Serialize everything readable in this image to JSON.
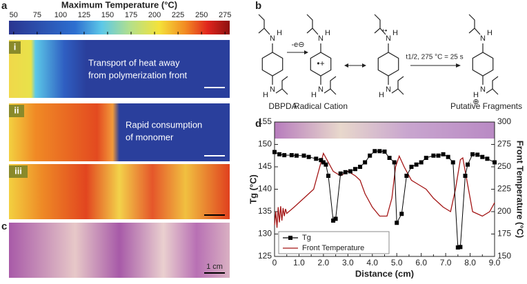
{
  "panel_labels": [
    "a",
    "b",
    "c",
    "d"
  ],
  "panel_a": {
    "colorbar": {
      "title": "Maximum Temperature (°C)",
      "lim": [
        45,
        280
      ],
      "ticks": [
        50,
        75,
        100,
        125,
        150,
        175,
        200,
        225,
        250,
        275
      ]
    },
    "images": [
      {
        "label": "i",
        "annotation": [
          "Transport of heat away",
          "from polymerization front"
        ]
      },
      {
        "label": "ii",
        "annotation": [
          "Rapid consumption",
          "of monomer"
        ]
      },
      {
        "label": "iii"
      }
    ]
  },
  "panel_b": {
    "atoms": [
      "N",
      "H"
    ],
    "charges": [
      "•+",
      "+•",
      "⊕"
    ],
    "labels": [
      "DBPDA",
      "Radical Cation",
      "Putative Fragments"
    ],
    "step": "-e⊖",
    "rate": "t1/2, 275 °C = 25 s"
  },
  "panel_c": {
    "scale": "1 cm"
  },
  "chart_data": {
    "type": "line",
    "xlabel": "Distance (cm)",
    "ylabel": "Tg (°C)",
    "y2label": "Front Temperature (°C)",
    "xlim": [
      0,
      9
    ],
    "xticks": [
      0,
      {
        "value": 0.5,
        "label": "0.5"
      },
      {
        "value": 1,
        "label": "1.0"
      },
      {
        "value": 1.5,
        "label": "1.5"
      },
      {
        "value": 2,
        "label": "2.0"
      },
      {
        "value": 2.5,
        "label": "2.5"
      },
      {
        "value": 3,
        "label": "3.0"
      },
      {
        "value": 3.5,
        "label": "3.5"
      },
      {
        "value": 4,
        "label": "4.0"
      },
      {
        "value": 4.5,
        "label": "4.5"
      },
      {
        "value": 5,
        "label": "5.0"
      },
      {
        "value": 5.5,
        "label": "5.5"
      },
      {
        "value": 6,
        "label": "6.0"
      },
      {
        "value": 6.5,
        "label": "6.5"
      },
      {
        "value": 7,
        "label": "7.0"
      },
      {
        "value": 7.5,
        "label": "7.5"
      },
      {
        "value": 8,
        "label": "8.0"
      },
      {
        "value": 8.5,
        "label": "8.5"
      },
      {
        "value": 9,
        "label": "9.0"
      }
    ],
    "ylim": [
      125,
      155
    ],
    "yticks": [
      125,
      130,
      135,
      140,
      145,
      150,
      155
    ],
    "y2lim": [
      150,
      300
    ],
    "y2ticks": [
      150,
      175,
      200,
      225,
      250,
      275,
      300
    ],
    "series": [
      {
        "name": "Tg",
        "color": "#000000",
        "marker": "square",
        "x": [
          0,
          0.2,
          0.4,
          0.7,
          0.9,
          1.2,
          1.4,
          1.7,
          1.9,
          2.0,
          2.1,
          2.2,
          2.4,
          2.5,
          2.7,
          2.9,
          3.1,
          3.3,
          3.5,
          3.7,
          3.9,
          4.1,
          4.3,
          4.5,
          4.7,
          4.9,
          5.0,
          5.2,
          5.4,
          5.6,
          5.8,
          6.0,
          6.2,
          6.5,
          6.7,
          6.9,
          7.1,
          7.3,
          7.5,
          7.6,
          7.8,
          7.9,
          8.1,
          8.3,
          8.5,
          8.7,
          9.0
        ],
        "values": [
          148.3,
          147.8,
          147.6,
          147.6,
          147.5,
          147.5,
          147.2,
          146.8,
          146.5,
          146,
          145.5,
          143,
          133,
          133.4,
          143.5,
          143.8,
          144,
          144.5,
          145,
          146,
          147.5,
          148.5,
          148.5,
          148.4,
          147,
          146,
          132.5,
          134.5,
          143,
          145,
          145.5,
          146,
          147,
          147.5,
          147.5,
          147.8,
          147.2,
          146,
          127,
          127.1,
          143,
          145.5,
          147.8,
          147.7,
          147.2,
          146.8,
          146
        ]
      },
      {
        "name": "Front Temperature",
        "color": "#a31515",
        "axis": "y2",
        "x": [
          0,
          0.05,
          0.1,
          0.15,
          0.2,
          0.25,
          0.3,
          0.35,
          0.4,
          0.45,
          0.5,
          0.8,
          1.2,
          1.6,
          1.8,
          2.0,
          2.2,
          2.4,
          2.7,
          3.0,
          3.3,
          3.5,
          3.7,
          4.0,
          4.3,
          4.6,
          4.8,
          4.95,
          5.1,
          5.3,
          5.6,
          5.9,
          6.2,
          6.5,
          6.9,
          7.2,
          7.4,
          7.6,
          7.7,
          7.9,
          8.1,
          8.5,
          8.8,
          9.0
        ],
        "values": [
          185,
          200,
          182,
          205,
          188,
          206,
          190,
          204,
          195,
          203,
          198,
          205,
          215,
          225,
          245,
          265,
          255,
          245,
          240,
          245,
          240,
          235,
          220,
          205,
          195,
          195,
          215,
          250,
          262,
          250,
          235,
          230,
          225,
          215,
          205,
          200,
          225,
          258,
          260,
          230,
          200,
          195,
          200,
          210
        ]
      }
    ]
  }
}
